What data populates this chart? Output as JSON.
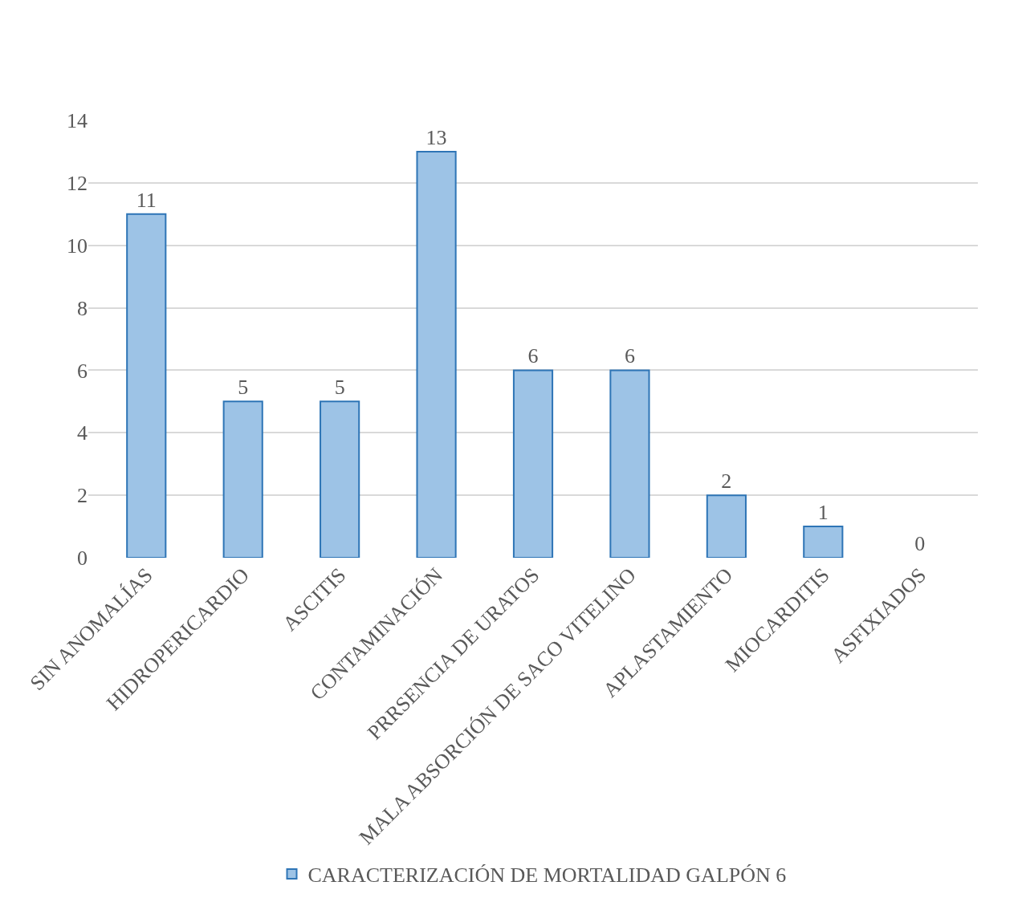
{
  "chart_data": {
    "type": "bar",
    "categories": [
      "SIN ANOMALÍAS",
      "HIDROPERICARDIO",
      "ASCITIS",
      "CONTAMINACIÓN",
      "PRRSENCIA DE URATOS",
      "MALA ABSORCIÓN DE SACO VITELINO",
      "APLASTAMIENTO",
      "MIOCARDITIS",
      "ASFIXIADOS"
    ],
    "series": [
      {
        "name": "CARACTERIZACIÓN DE MORTALIDAD GALPÓN 6",
        "color": "#9dc3e6",
        "values": [
          11,
          5,
          5,
          13,
          6,
          6,
          2,
          1,
          0
        ]
      }
    ],
    "ylim": [
      0,
      14
    ],
    "yticks": [
      0,
      2,
      4,
      6,
      8,
      10,
      12,
      14
    ],
    "grid": true,
    "legend": "bottom",
    "data_labels": true
  }
}
